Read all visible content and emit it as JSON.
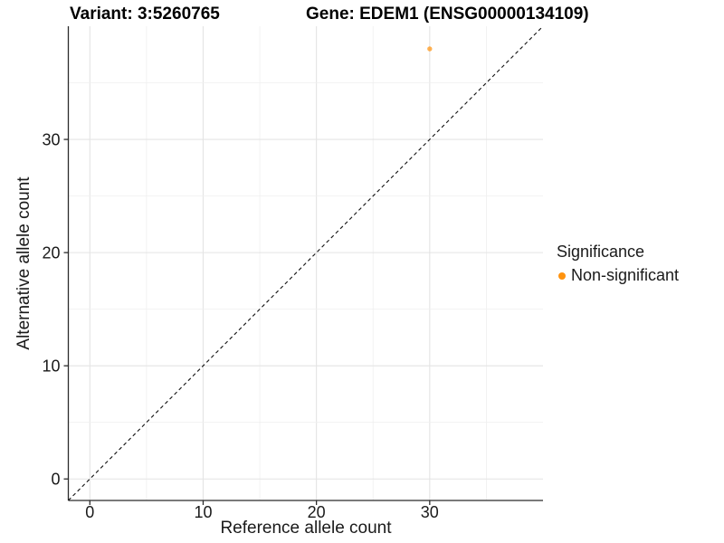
{
  "chart_data": {
    "type": "scatter",
    "title_left": "Variant: 3:5260765",
    "title_right": "Gene: EDEM1 (ENSG00000134109)",
    "xlabel": "Reference allele count",
    "ylabel": "Alternative allele count",
    "xlim": [
      -1.9,
      40
    ],
    "ylim": [
      -1.9,
      40
    ],
    "x_major_ticks": [
      0,
      10,
      20,
      30
    ],
    "y_major_ticks": [
      0,
      10,
      20,
      30
    ],
    "x_gridlines": [
      0,
      5,
      10,
      15,
      20,
      25,
      30,
      35
    ],
    "y_gridlines": [
      0,
      5,
      10,
      15,
      20,
      25,
      30,
      35
    ],
    "grid": true,
    "reference_line": {
      "type": "identity",
      "label": "y = x",
      "style": "dashed",
      "color": "#111111"
    },
    "series": [
      {
        "name": "Non-significant",
        "color": "#FF930F",
        "point_opacity": 0.72,
        "points": [
          {
            "x": 30,
            "y": 38
          }
        ]
      }
    ],
    "legend": {
      "title": "Significance",
      "position": "right",
      "items": [
        {
          "label": "Non-significant",
          "color": "#FF930F"
        }
      ]
    },
    "colors": {
      "background": "#FFFFFF",
      "axis_line": "#2B2B2B",
      "tick_mark": "#2B2B2B",
      "tick_label": "#1A1A1A",
      "major_grid": "#E4E4E4",
      "minor_grid": "#EFEFEF",
      "title": "#000000"
    }
  }
}
